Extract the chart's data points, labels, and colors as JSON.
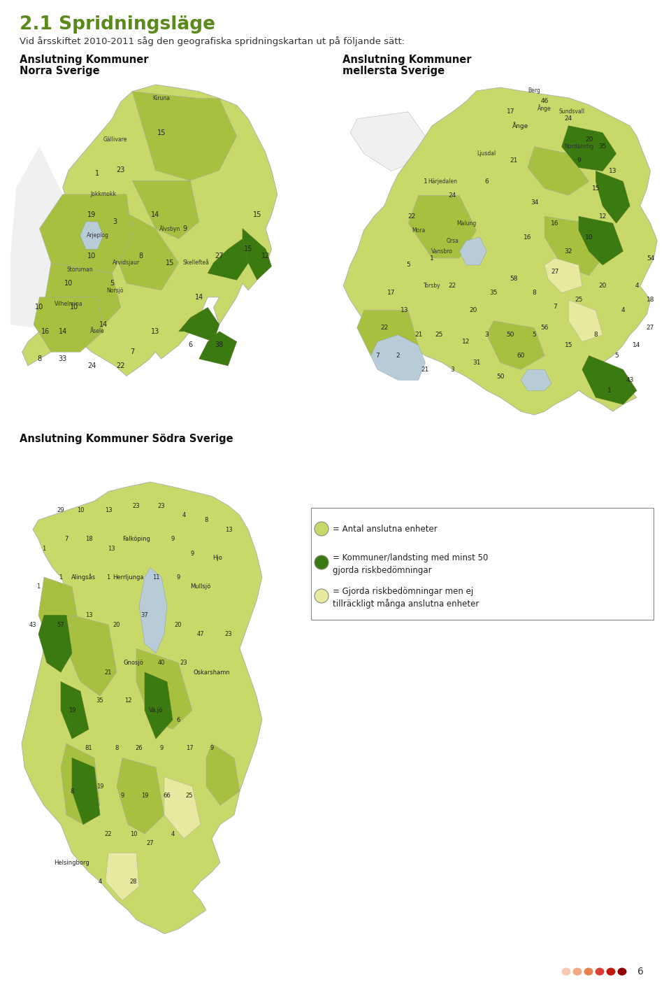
{
  "title": "2.1 Spridningsläge",
  "subtitle": "Vid årsskiftet 2010-2011 såg den geografiska spridningskartan ut på följande sätt:",
  "label_norra_1": "Anslutning Kommuner",
  "label_norra_2": "Norra Sverige",
  "label_mellersta_1": "Anslutning Kommuner",
  "label_mellersta_2": "mellersta Sverige",
  "label_sodra": "Anslutning Kommuner Södra Sverige",
  "page_number": "6",
  "background_color": "#ffffff",
  "title_color": "#5a8a1a",
  "light_green": "#c8d96a",
  "mid_green": "#a8c040",
  "dark_green": "#3a7a10",
  "pale_yellow": "#e8e8a0",
  "pale_green2": "#d4e070",
  "lake_blue": "#b8ccd8",
  "border_color": "#aaaaaa",
  "white_area": "#f0f0f0",
  "dot_colors": [
    "#f5c8b0",
    "#f0a880",
    "#e88050",
    "#d84030",
    "#c01808",
    "#900000"
  ]
}
